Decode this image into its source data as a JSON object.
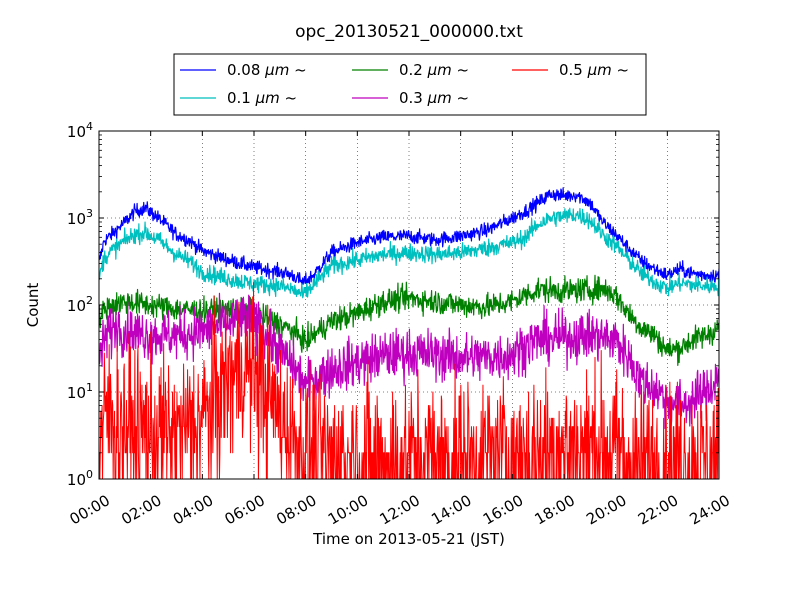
{
  "chart_data": {
    "type": "line",
    "title": "opc_20130521_000000.txt",
    "xlabel": "Time on 2013-05-21 (JST)",
    "ylabel": "Count",
    "x_unit": "hour",
    "xlim": [
      0,
      24
    ],
    "x_ticks": [
      0,
      2,
      4,
      6,
      8,
      10,
      12,
      14,
      16,
      18,
      20,
      22,
      24
    ],
    "x_tick_labels": [
      "00:00",
      "02:00",
      "04:00",
      "06:00",
      "08:00",
      "10:00",
      "12:00",
      "14:00",
      "16:00",
      "18:00",
      "20:00",
      "22:00",
      "24:00"
    ],
    "ylim": [
      1,
      10000
    ],
    "yscale": "log",
    "y_ticks": [
      1,
      10,
      100,
      1000,
      10000
    ],
    "y_tick_labels": [
      {
        "base": "10",
        "exp": "0"
      },
      {
        "base": "10",
        "exp": "1"
      },
      {
        "base": "10",
        "exp": "2"
      },
      {
        "base": "10",
        "exp": "3"
      },
      {
        "base": "10",
        "exp": "4"
      }
    ],
    "grid": true,
    "legend_position": "top-center",
    "series": [
      {
        "label": {
          "prefix": "0.08 ",
          "unit": "μm",
          "suffix": " ~"
        },
        "color": "#0000ff",
        "noise": 0.04,
        "x": [
          0,
          0.2,
          0.5,
          1.0,
          1.4,
          1.8,
          2.3,
          3.0,
          3.5,
          4.0,
          5.0,
          6.0,
          7.0,
          7.5,
          7.9,
          8.3,
          9.0,
          10.0,
          11.0,
          12.0,
          13.0,
          14.0,
          15.0,
          16.0,
          16.5,
          17.0,
          17.5,
          18.0,
          18.5,
          19.0,
          19.5,
          20.0,
          20.5,
          21.0,
          21.5,
          22.0,
          22.5,
          23.0,
          23.5,
          24.0
        ],
        "y": [
          300,
          550,
          650,
          900,
          1200,
          1300,
          1000,
          650,
          550,
          420,
          330,
          270,
          240,
          220,
          180,
          220,
          400,
          520,
          600,
          620,
          560,
          620,
          720,
          1000,
          1200,
          1500,
          1900,
          1800,
          1850,
          1500,
          900,
          650,
          450,
          320,
          260,
          220,
          260,
          230,
          220,
          220
        ]
      },
      {
        "label": {
          "prefix": "0.1 ",
          "unit": "μm",
          "suffix": " ~"
        },
        "color": "#00bfbf",
        "noise": 0.05,
        "x": [
          0,
          0.2,
          0.5,
          1.0,
          1.4,
          1.8,
          2.3,
          3.0,
          3.5,
          4.0,
          5.0,
          6.0,
          7.0,
          7.5,
          7.9,
          8.3,
          9.0,
          10.0,
          11.0,
          12.0,
          13.0,
          14.0,
          15.0,
          16.0,
          16.5,
          17.0,
          17.5,
          18.0,
          18.5,
          19.0,
          19.5,
          20.0,
          20.5,
          21.0,
          21.5,
          22.0,
          22.5,
          23.0,
          23.5,
          24.0
        ],
        "y": [
          200,
          350,
          420,
          550,
          650,
          680,
          560,
          380,
          320,
          240,
          200,
          175,
          165,
          150,
          130,
          170,
          280,
          330,
          380,
          400,
          380,
          400,
          450,
          520,
          600,
          850,
          1000,
          1050,
          1100,
          950,
          650,
          480,
          330,
          230,
          185,
          155,
          180,
          170,
          165,
          165
        ]
      },
      {
        "label": {
          "prefix": "0.2 ",
          "unit": "μm",
          "suffix": " ~"
        },
        "color": "#008000",
        "noise": 0.07,
        "x": [
          0,
          0.3,
          1.0,
          2.0,
          3.0,
          4.0,
          5.0,
          6.0,
          7.0,
          7.5,
          8.0,
          8.5,
          9.0,
          10.0,
          11.0,
          12.0,
          13.0,
          14.0,
          15.0,
          16.0,
          16.5,
          17.0,
          18.0,
          19.0,
          19.5,
          20.0,
          20.5,
          21.0,
          21.5,
          22.0,
          22.5,
          23.0,
          23.5,
          24.0
        ],
        "y": [
          70,
          95,
          110,
          100,
          90,
          85,
          90,
          80,
          60,
          50,
          38,
          50,
          65,
          80,
          110,
          120,
          110,
          100,
          95,
          110,
          130,
          150,
          145,
          150,
          155,
          130,
          80,
          55,
          45,
          30,
          32,
          40,
          45,
          55
        ]
      },
      {
        "label": {
          "prefix": "0.3 ",
          "unit": "μm",
          "suffix": " ~"
        },
        "color": "#bf00bf",
        "noise": 0.14,
        "x": [
          0,
          0.3,
          0.7,
          1.0,
          2.0,
          3.0,
          4.0,
          5.0,
          5.5,
          6.0,
          6.5,
          7.0,
          7.5,
          8.0,
          8.5,
          9.0,
          10.0,
          11.0,
          12.0,
          13.0,
          14.0,
          15.0,
          16.0,
          16.5,
          17.0,
          18.0,
          19.0,
          19.5,
          20.0,
          20.5,
          21.0,
          21.5,
          22.0,
          22.5,
          23.0,
          23.5,
          24.0
        ],
        "y": [
          25,
          45,
          60,
          50,
          45,
          45,
          50,
          60,
          70,
          65,
          45,
          30,
          20,
          12,
          15,
          18,
          22,
          26,
          28,
          27,
          25,
          25,
          27,
          35,
          40,
          42,
          45,
          42,
          40,
          25,
          13,
          11,
          8,
          7,
          8,
          10,
          15
        ]
      },
      {
        "label": {
          "prefix": "0.5 ",
          "unit": "μm",
          "suffix": " ~"
        },
        "color": "#ff0000",
        "noise": 0.45,
        "x": [
          0,
          0.3,
          1.0,
          2.0,
          3.0,
          4.0,
          4.5,
          5.0,
          5.5,
          6.0,
          6.5,
          7.0,
          7.5,
          8.0,
          9.0,
          10.0,
          12.0,
          14.0,
          16.0,
          18.0,
          19.0,
          20.0,
          20.5,
          21.0,
          22.0,
          23.0,
          24.0
        ],
        "y": [
          2,
          6,
          4,
          3.5,
          3,
          5,
          8,
          14,
          20,
          18,
          10,
          5,
          3,
          2,
          1.7,
          1.7,
          1.7,
          1.7,
          1.8,
          2.3,
          2.5,
          2.2,
          1.8,
          1.5,
          1.5,
          1.5,
          1.5
        ]
      }
    ]
  }
}
